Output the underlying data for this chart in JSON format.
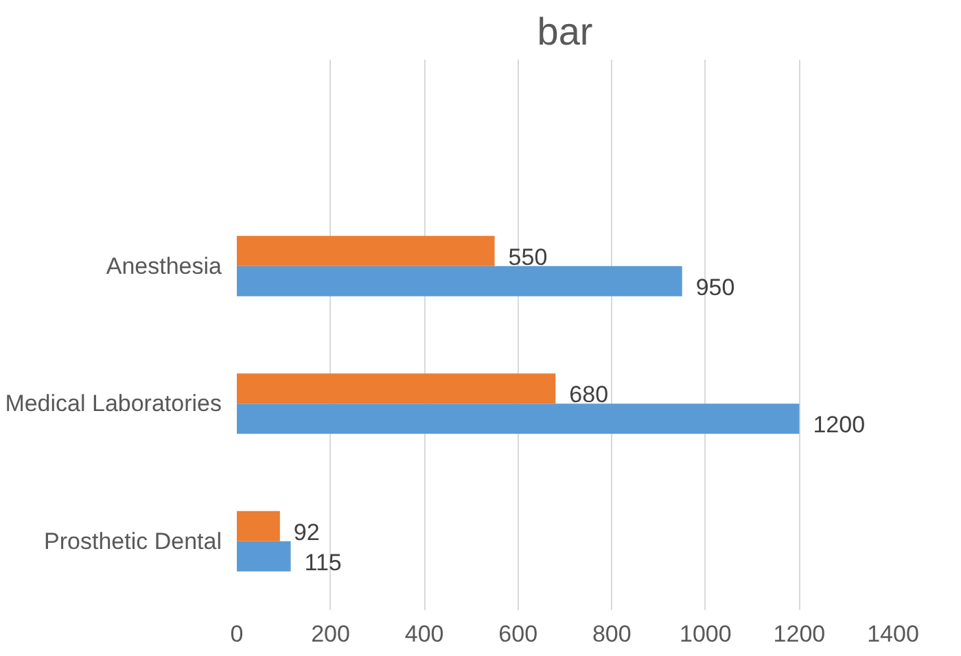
{
  "chart_data": {
    "type": "bar",
    "orientation": "horizontal",
    "title": "bar",
    "categories": [
      "Anesthesia",
      "Medical Laboratories",
      "Prosthetic Dental"
    ],
    "series": [
      {
        "color": "#5b9bd5",
        "values": [
          950,
          1200,
          115
        ]
      },
      {
        "color": "#ed7d31",
        "values": [
          550,
          680,
          92
        ]
      }
    ],
    "xlim": [
      0,
      1400
    ],
    "xticks": [
      0,
      200,
      400,
      600,
      800,
      1000,
      1200,
      1400
    ],
    "grid": "x",
    "data_labels": true
  }
}
